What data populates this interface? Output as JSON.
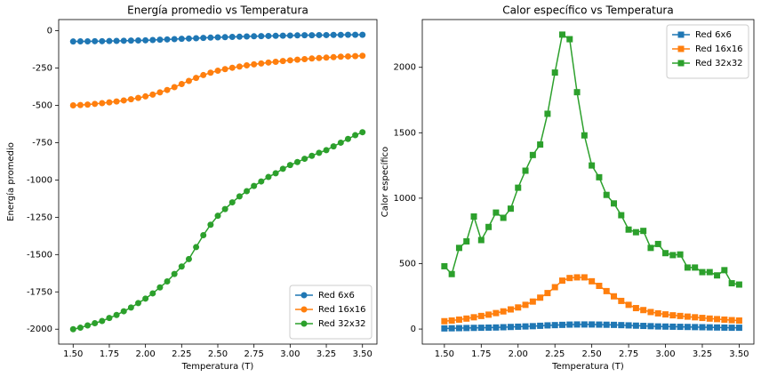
{
  "chart_data": [
    {
      "type": "line",
      "title": "Energía promedio vs Temperatura",
      "xlabel": "Temperatura (T)",
      "ylabel": "Energía promedio",
      "marker": "circle",
      "legend": "lower right",
      "x": [
        1.5,
        1.55,
        1.6,
        1.65,
        1.7,
        1.75,
        1.8,
        1.85,
        1.9,
        1.95,
        2.0,
        2.05,
        2.1,
        2.15,
        2.2,
        2.25,
        2.3,
        2.35,
        2.4,
        2.45,
        2.5,
        2.55,
        2.6,
        2.65,
        2.7,
        2.75,
        2.8,
        2.85,
        2.9,
        2.95,
        3.0,
        3.05,
        3.1,
        3.15,
        3.2,
        3.25,
        3.3,
        3.35,
        3.4,
        3.45,
        3.5
      ],
      "xlim": [
        1.4,
        3.6
      ],
      "xticks": [
        {
          "value": 1.5,
          "label": "1.50"
        },
        {
          "value": 1.75,
          "label": "1.75"
        },
        {
          "value": 2.0,
          "label": "2.00"
        },
        {
          "value": 2.25,
          "label": "2.25"
        },
        {
          "value": 2.5,
          "label": "2.50"
        },
        {
          "value": 2.75,
          "label": "2.75"
        },
        {
          "value": 3.0,
          "label": "3.00"
        },
        {
          "value": 3.25,
          "label": "3.25"
        },
        {
          "value": 3.5,
          "label": "3.50"
        }
      ],
      "ylim": [
        -2100,
        75
      ],
      "yticks": [
        0,
        -250,
        -500,
        -750,
        -1000,
        -1250,
        -1500,
        -1750,
        -2000
      ],
      "series": [
        {
          "name": "Red 6x6",
          "color": "#1f77b4",
          "values": [
            -72,
            -71,
            -71,
            -70,
            -70,
            -69,
            -68,
            -67,
            -66,
            -65,
            -64,
            -62,
            -60,
            -58,
            -56,
            -54,
            -52,
            -50,
            -48,
            -46,
            -44,
            -43,
            -41,
            -40,
            -38,
            -37,
            -36,
            -35,
            -34,
            -33,
            -32,
            -31,
            -30,
            -30,
            -29,
            -29,
            -28,
            -28,
            -27,
            -27,
            -27
          ]
        },
        {
          "name": "Red 16x16",
          "color": "#ff7f0e",
          "values": [
            -500,
            -498,
            -495,
            -490,
            -485,
            -480,
            -474,
            -467,
            -459,
            -450,
            -440,
            -428,
            -413,
            -397,
            -378,
            -357,
            -336,
            -316,
            -297,
            -281,
            -268,
            -257,
            -248,
            -240,
            -232,
            -225,
            -219,
            -213,
            -208,
            -203,
            -198,
            -194,
            -190,
            -186,
            -183,
            -180,
            -177,
            -174,
            -172,
            -170,
            -168
          ]
        },
        {
          "name": "Red 32x32",
          "color": "#2ca02c",
          "values": [
            -2000,
            -1990,
            -1975,
            -1960,
            -1945,
            -1925,
            -1905,
            -1880,
            -1855,
            -1825,
            -1795,
            -1760,
            -1720,
            -1680,
            -1630,
            -1580,
            -1530,
            -1450,
            -1370,
            -1300,
            -1240,
            -1195,
            -1150,
            -1110,
            -1075,
            -1040,
            -1010,
            -980,
            -955,
            -925,
            -900,
            -880,
            -858,
            -838,
            -818,
            -800,
            -775,
            -750,
            -725,
            -700,
            -680
          ]
        }
      ]
    },
    {
      "type": "line",
      "title": "Calor específico vs Temperatura",
      "xlabel": "Temperatura (T)",
      "ylabel": "Calor específico",
      "marker": "square",
      "legend": "upper right",
      "x": [
        1.5,
        1.55,
        1.6,
        1.65,
        1.7,
        1.75,
        1.8,
        1.85,
        1.9,
        1.95,
        2.0,
        2.05,
        2.1,
        2.15,
        2.2,
        2.25,
        2.3,
        2.35,
        2.4,
        2.45,
        2.5,
        2.55,
        2.6,
        2.65,
        2.7,
        2.75,
        2.8,
        2.85,
        2.9,
        2.95,
        3.0,
        3.05,
        3.1,
        3.15,
        3.2,
        3.25,
        3.3,
        3.35,
        3.4,
        3.45,
        3.5
      ],
      "xlim": [
        1.35,
        3.6
      ],
      "xticks": [
        {
          "value": 1.5,
          "label": "1.50"
        },
        {
          "value": 1.75,
          "label": "1.75"
        },
        {
          "value": 2.0,
          "label": "2.00"
        },
        {
          "value": 2.25,
          "label": "2.25"
        },
        {
          "value": 2.5,
          "label": "2.50"
        },
        {
          "value": 2.75,
          "label": "2.75"
        },
        {
          "value": 3.0,
          "label": "3.00"
        },
        {
          "value": 3.25,
          "label": "3.25"
        },
        {
          "value": 3.5,
          "label": "3.50"
        }
      ],
      "ylim": [
        -115,
        2365
      ],
      "yticks": [
        0,
        500,
        1000,
        1500,
        2000
      ],
      "series": [
        {
          "name": "Red 6x6",
          "color": "#1f77b4",
          "values": [
            5,
            6,
            7,
            8,
            9,
            10,
            11,
            12,
            14,
            16,
            18,
            20,
            22,
            25,
            28,
            30,
            32,
            34,
            35,
            35,
            35,
            34,
            33,
            32,
            30,
            28,
            26,
            24,
            22,
            20,
            19,
            18,
            17,
            16,
            15,
            14,
            13,
            12,
            11,
            10,
            10
          ]
        },
        {
          "name": "Red 16x16",
          "color": "#ff7f0e",
          "values": [
            60,
            65,
            72,
            80,
            90,
            100,
            110,
            122,
            135,
            150,
            165,
            185,
            210,
            240,
            275,
            320,
            370,
            390,
            395,
            395,
            365,
            330,
            290,
            250,
            215,
            185,
            160,
            145,
            130,
            120,
            112,
            105,
            100,
            95,
            90,
            85,
            80,
            76,
            72,
            68,
            65
          ]
        },
        {
          "name": "Red 32x32",
          "color": "#2ca02c",
          "values": [
            480,
            420,
            620,
            670,
            860,
            680,
            780,
            890,
            850,
            920,
            1080,
            1210,
            1330,
            1410,
            1645,
            1960,
            2250,
            2215,
            1810,
            1480,
            1250,
            1160,
            1025,
            960,
            870,
            760,
            740,
            750,
            620,
            650,
            580,
            565,
            570,
            470,
            470,
            435,
            435,
            410,
            450,
            350,
            340
          ]
        }
      ]
    }
  ]
}
